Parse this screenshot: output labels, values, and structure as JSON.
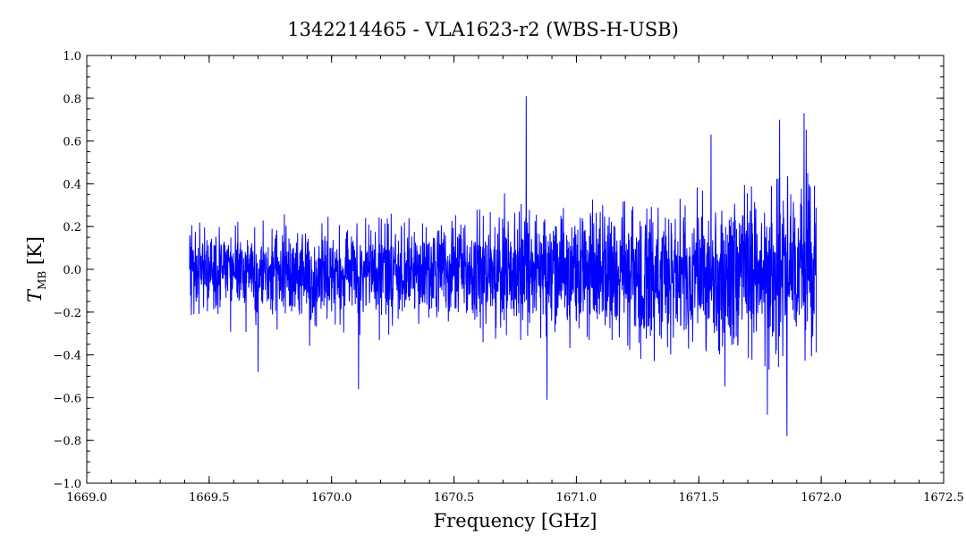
{
  "chart_data": {
    "type": "line",
    "title": "1342214465 - VLA1623-r2 (WBS-H-USB)",
    "xlabel": "Frequency [GHz]",
    "ylabel_main": "T",
    "ylabel_sub": "MB",
    "ylabel_unit": "[K]",
    "xlim": [
      1669.0,
      1672.5
    ],
    "ylim": [
      -1.0,
      1.0
    ],
    "x_major_ticks": [
      1669.0,
      1669.5,
      1670.0,
      1670.5,
      1671.0,
      1671.5,
      1672.0,
      1672.5
    ],
    "x_tick_labels": [
      "1669.0",
      "1669.5",
      "1670.0",
      "1670.5",
      "1671.0",
      "1671.5",
      "1672.0",
      "1672.5"
    ],
    "y_major_ticks": [
      -1.0,
      -0.8,
      -0.6,
      -0.4,
      -0.2,
      0.0,
      0.2,
      0.4,
      0.6,
      0.8,
      1.0
    ],
    "y_tick_labels": [
      "−1.0",
      "−0.8",
      "−0.6",
      "−0.4",
      "−0.2",
      "0.0",
      "0.2",
      "0.4",
      "0.6",
      "0.8",
      "1.0"
    ],
    "grid": false,
    "line_color": "#0000ff",
    "series": [
      {
        "x_start": 1669.42,
        "x_end": 1671.98,
        "envelope": {
          "x": [
            1669.42,
            1670.0,
            1670.5,
            1671.0,
            1671.5,
            1671.98
          ],
          "y_low": [
            -0.3,
            -0.35,
            -0.35,
            -0.45,
            -0.55,
            -0.6
          ],
          "y_high": [
            0.3,
            0.3,
            0.35,
            0.4,
            0.5,
            0.6
          ]
        },
        "notable_points": [
          {
            "x": 1670.795,
            "y": 0.81
          },
          {
            "x": 1670.11,
            "y": -0.56
          },
          {
            "x": 1669.7,
            "y": -0.48
          },
          {
            "x": 1670.88,
            "y": -0.61
          },
          {
            "x": 1671.86,
            "y": -0.78
          },
          {
            "x": 1671.93,
            "y": 0.73
          },
          {
            "x": 1671.83,
            "y": 0.7
          },
          {
            "x": 1671.55,
            "y": 0.63
          },
          {
            "x": 1671.78,
            "y": -0.68
          }
        ]
      }
    ]
  }
}
